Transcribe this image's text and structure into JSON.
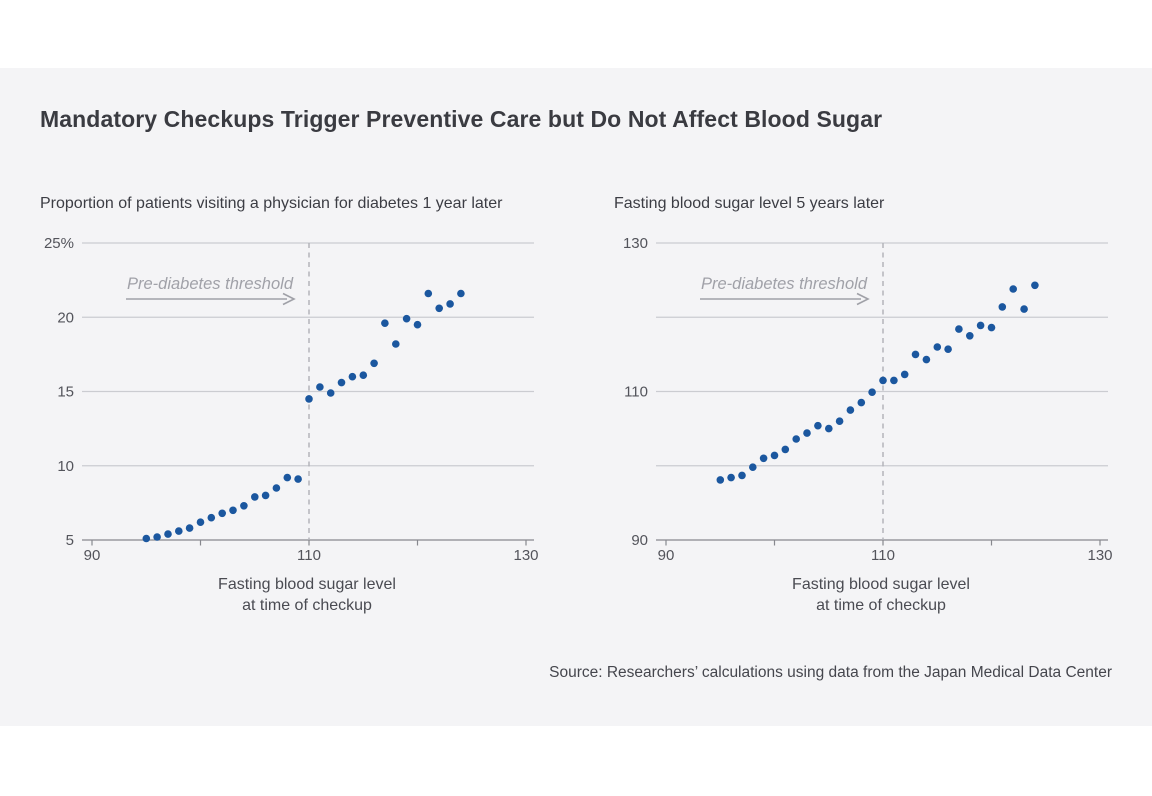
{
  "header": {
    "title": "Mandatory Checkups Trigger Preventive Care but Do Not Affect Blood Sugar"
  },
  "footer": {
    "source": "Source: Researchers’ calculations using data from the Japan Medical Data Center"
  },
  "colors": {
    "panel_background": "#f4f4f6",
    "dot": "#1b579f",
    "gridline": "#cbccd1",
    "axis_line": "#87888e",
    "threshold_dashed_line": "#b3b4ba",
    "annotation": "#a0a1a8",
    "title_text": "#3a3b41",
    "tick_text": "#53545b"
  },
  "chart_data": [
    {
      "type": "scatter",
      "title": "Proportion of patients visiting a physician for diabetes 1 year later",
      "xlabel_line1": "Fasting blood sugar level",
      "xlabel_line2": "at time of checkup",
      "annotation": "Pre-diabetes threshold",
      "threshold_x": 110,
      "xlim": [
        90,
        130
      ],
      "ylim": [
        5,
        25
      ],
      "grid": true,
      "legend": "none",
      "xticks": [
        {
          "value": 90,
          "label": "90"
        },
        {
          "value": 100,
          "label": ""
        },
        {
          "value": 110,
          "label": "110"
        },
        {
          "value": 120,
          "label": ""
        },
        {
          "value": 130,
          "label": "130"
        }
      ],
      "yticks": [
        {
          "value": 25,
          "label": "25%"
        },
        {
          "value": 20,
          "label": "20"
        },
        {
          "value": 15,
          "label": "15"
        },
        {
          "value": 10,
          "label": "10"
        },
        {
          "value": 5,
          "label": "5"
        }
      ],
      "x": [
        95,
        96,
        97,
        98,
        99,
        100,
        101,
        102,
        103,
        104,
        105,
        106,
        107,
        108,
        109,
        110,
        111,
        112,
        113,
        114,
        115,
        116,
        117,
        118,
        119,
        120,
        121,
        122,
        123,
        124
      ],
      "y": [
        5.1,
        5.2,
        5.4,
        5.6,
        5.8,
        6.2,
        6.5,
        6.8,
        7.0,
        7.3,
        7.9,
        8.0,
        8.5,
        9.2,
        9.1,
        14.5,
        15.3,
        14.9,
        15.6,
        16.0,
        16.1,
        16.9,
        19.6,
        18.2,
        19.9,
        19.5,
        21.6,
        20.6,
        20.9,
        21.6
      ]
    },
    {
      "type": "scatter",
      "title": "Fasting blood sugar level 5 years later",
      "xlabel_line1": "Fasting blood sugar level",
      "xlabel_line2": "at time of checkup",
      "annotation": "Pre-diabetes threshold",
      "threshold_x": 110,
      "xlim": [
        90,
        130
      ],
      "ylim": [
        90,
        130
      ],
      "grid": true,
      "legend": "none",
      "xticks": [
        {
          "value": 90,
          "label": "90"
        },
        {
          "value": 100,
          "label": ""
        },
        {
          "value": 110,
          "label": "110"
        },
        {
          "value": 120,
          "label": ""
        },
        {
          "value": 130,
          "label": "130"
        }
      ],
      "yticks": [
        {
          "value": 130,
          "label": "130"
        },
        {
          "value": 120,
          "label": ""
        },
        {
          "value": 110,
          "label": "110"
        },
        {
          "value": 100,
          "label": ""
        },
        {
          "value": 90,
          "label": "90"
        }
      ],
      "x": [
        95,
        96,
        97,
        98,
        99,
        100,
        101,
        102,
        103,
        104,
        105,
        106,
        107,
        108,
        109,
        110,
        111,
        112,
        113,
        114,
        115,
        116,
        117,
        118,
        119,
        120,
        121,
        122,
        123,
        124
      ],
      "y": [
        98.1,
        98.4,
        98.7,
        99.8,
        101.0,
        101.4,
        102.2,
        103.6,
        104.4,
        105.4,
        105.0,
        106.0,
        107.5,
        108.5,
        109.9,
        111.5,
        111.5,
        112.3,
        115.0,
        114.3,
        116.0,
        115.7,
        118.4,
        117.5,
        118.9,
        118.6,
        121.4,
        123.8,
        121.1,
        124.3
      ]
    }
  ]
}
